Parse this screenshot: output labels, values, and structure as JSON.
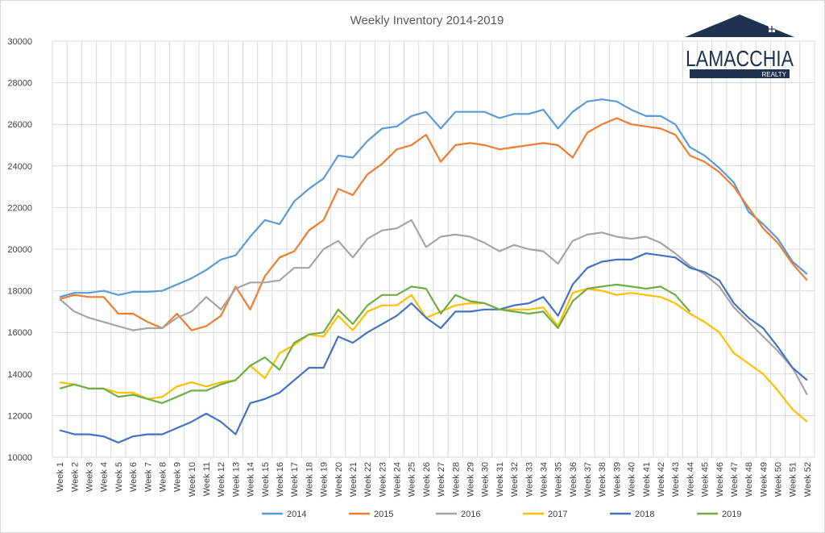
{
  "logo": {
    "brand": "LAMACCHIA",
    "sub": "REALTY",
    "color": "#1d3350"
  },
  "chart_data": {
    "type": "line",
    "title": "Weekly Inventory 2014-2019",
    "xlabel": "",
    "ylabel": "",
    "ylim": [
      10000,
      30000
    ],
    "yticks": [
      10000,
      12000,
      14000,
      16000,
      18000,
      20000,
      22000,
      24000,
      26000,
      28000,
      30000
    ],
    "grid": true,
    "legend_position": "bottom",
    "categories": [
      "Week 1",
      "Week 2",
      "Week 3",
      "Week 4",
      "Week 5",
      "Week 6",
      "Week 7",
      "Week 8",
      "Week 9",
      "Week 10",
      "Week 11",
      "Week 12",
      "Week 13",
      "Week 14",
      "Week 15",
      "Week 16",
      "Week 17",
      "Week 18",
      "Week 19",
      "Week 20",
      "Week 21",
      "Week 22",
      "Week 23",
      "Week 24",
      "Week 25",
      "Week 26",
      "Week 27",
      "Week 28",
      "Week 29",
      "Week 30",
      "Week 31",
      "Week 32",
      "Week 33",
      "Week 34",
      "Week 35",
      "Week 36",
      "Week 37",
      "Week 38",
      "Week 39",
      "Week 40",
      "Week 41",
      "Week 42",
      "Week 43",
      "Week 44",
      "Week 45",
      "Week 46",
      "Week 47",
      "Week 48",
      "Week 49",
      "Week 50",
      "Week 51",
      "Week 52"
    ],
    "series": [
      {
        "name": "2014",
        "color": "#5b9bd5",
        "values": [
          17700,
          17900,
          17900,
          18000,
          17800,
          17950,
          17950,
          18000,
          18300,
          18600,
          19000,
          19500,
          19700,
          20600,
          21400,
          21200,
          22300,
          22900,
          23400,
          24500,
          24400,
          25200,
          25800,
          25900,
          26400,
          26600,
          25800,
          26600,
          26600,
          26600,
          26300,
          26500,
          26500,
          26700,
          25800,
          26600,
          27100,
          27200,
          27100,
          26700,
          26400,
          26400,
          26000,
          24900,
          24500,
          23900,
          23200,
          21800,
          21200,
          20500,
          19400,
          18800
        ]
      },
      {
        "name": "2015",
        "color": "#ed7d31",
        "values": [
          17600,
          17800,
          17700,
          17700,
          16900,
          16900,
          16500,
          16200,
          16900,
          16100,
          16300,
          16800,
          18200,
          17100,
          18700,
          19600,
          19900,
          20900,
          21400,
          22900,
          22600,
          23600,
          24100,
          24800,
          25000,
          25500,
          24200,
          25000,
          25100,
          25000,
          24800,
          24900,
          25000,
          25100,
          25000,
          24400,
          25600,
          26000,
          26300,
          26000,
          25900,
          25800,
          25500,
          24500,
          24200,
          23700,
          23000,
          22000,
          21000,
          20300,
          19300,
          18500
        ]
      },
      {
        "name": "2016",
        "color": "#a5a5a5",
        "values": [
          17600,
          17000,
          16700,
          16500,
          16300,
          16100,
          16200,
          16200,
          16700,
          17000,
          17700,
          17100,
          18100,
          18400,
          18400,
          18500,
          19100,
          19100,
          20000,
          20400,
          19600,
          20500,
          20900,
          21000,
          21400,
          20100,
          20600,
          20700,
          20600,
          20300,
          19900,
          20200,
          20000,
          19900,
          19300,
          20400,
          20700,
          20800,
          20600,
          20500,
          20600,
          20300,
          19800,
          19200,
          18800,
          18200,
          17200,
          16500,
          15800,
          15100,
          14300,
          13000
        ]
      },
      {
        "name": "2017",
        "color": "#ffc000",
        "values": [
          13600,
          13500,
          13300,
          13300,
          13100,
          13100,
          12800,
          12900,
          13400,
          13600,
          13400,
          13600,
          13700,
          14400,
          13800,
          15000,
          15400,
          15900,
          15800,
          16800,
          16100,
          17000,
          17300,
          17300,
          17800,
          16700,
          17000,
          17300,
          17400,
          17400,
          17100,
          17100,
          17100,
          17200,
          16300,
          17900,
          18100,
          18000,
          17800,
          17900,
          17800,
          17700,
          17400,
          16900,
          16500,
          16000,
          15000,
          14500,
          14000,
          13200,
          12300,
          11700
        ]
      },
      {
        "name": "2018",
        "color": "#4472c4",
        "values": [
          11300,
          11100,
          11100,
          11000,
          10700,
          11000,
          11100,
          11100,
          11400,
          11700,
          12100,
          11700,
          11100,
          12600,
          12800,
          13100,
          13700,
          14300,
          14300,
          15800,
          15500,
          16000,
          16400,
          16800,
          17400,
          16700,
          16200,
          17000,
          17000,
          17100,
          17100,
          17300,
          17400,
          17700,
          16800,
          18300,
          19100,
          19400,
          19500,
          19500,
          19800,
          19700,
          19600,
          19100,
          18900,
          18500,
          17400,
          16700,
          16200,
          15300,
          14300,
          13700
        ]
      },
      {
        "name": "2019",
        "color": "#70ad47",
        "values": [
          13300,
          13500,
          13300,
          13300,
          12900,
          13000,
          12800,
          12600,
          12900,
          13200,
          13200,
          13500,
          13700,
          14400,
          14800,
          14200,
          15500,
          15900,
          16000,
          17100,
          16400,
          17300,
          17800,
          17800,
          18200,
          18100,
          16900,
          17800,
          17500,
          17400,
          17100,
          17000,
          16900,
          17000,
          16200,
          17500,
          18100,
          18200,
          18300,
          18200,
          18100,
          18200,
          17800,
          17000,
          null,
          null,
          null,
          null,
          null,
          null,
          null,
          null
        ]
      }
    ]
  }
}
